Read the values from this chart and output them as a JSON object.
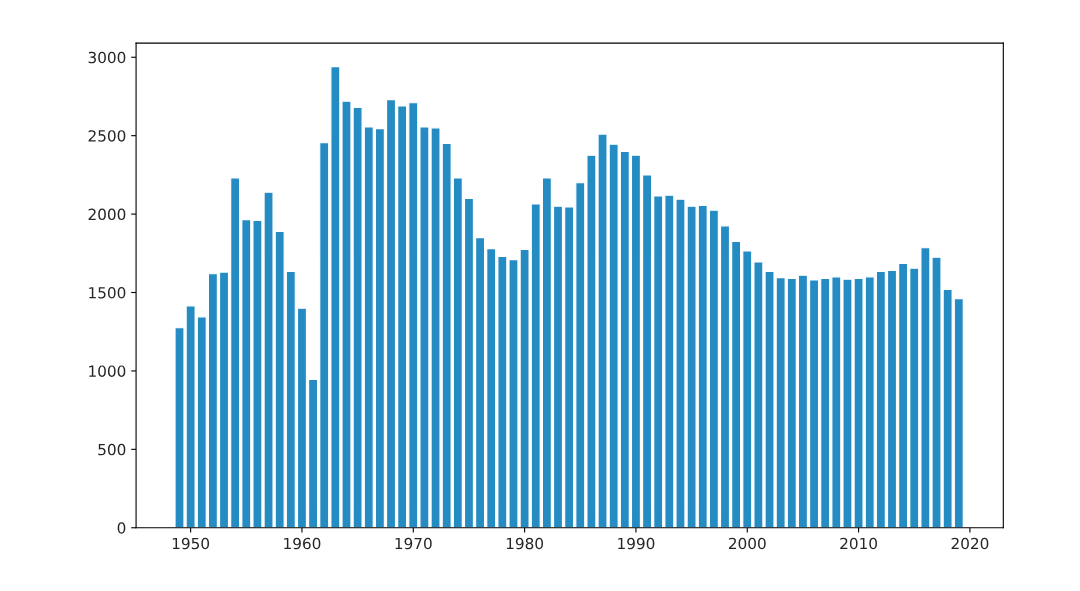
{
  "chart_data": {
    "type": "bar",
    "color": "#258bc3",
    "x": [
      1949,
      1950,
      1951,
      1952,
      1953,
      1954,
      1955,
      1956,
      1957,
      1958,
      1959,
      1960,
      1961,
      1962,
      1963,
      1964,
      1965,
      1966,
      1967,
      1968,
      1969,
      1970,
      1971,
      1972,
      1973,
      1974,
      1975,
      1976,
      1977,
      1978,
      1979,
      1980,
      1981,
      1982,
      1983,
      1984,
      1985,
      1986,
      1987,
      1988,
      1989,
      1990,
      1991,
      1992,
      1993,
      1994,
      1995,
      1996,
      1997,
      1998,
      1999,
      2000,
      2001,
      2002,
      2003,
      2004,
      2005,
      2006,
      2007,
      2008,
      2009,
      2010,
      2011,
      2012,
      2013,
      2014,
      2015,
      2016,
      2017,
      2018,
      2019
    ],
    "values": [
      1275,
      1415,
      1345,
      1620,
      1630,
      2230,
      1965,
      1960,
      2140,
      1890,
      1635,
      1400,
      945,
      2455,
      2940,
      2720,
      2680,
      2555,
      2545,
      2730,
      2690,
      2710,
      2555,
      2550,
      2450,
      2230,
      2100,
      1850,
      1780,
      1730,
      1710,
      1775,
      2065,
      2230,
      2050,
      2045,
      2200,
      2375,
      2510,
      2445,
      2400,
      2375,
      2250,
      2115,
      2120,
      2095,
      2050,
      2055,
      2025,
      1925,
      1825,
      1765,
      1695,
      1635,
      1595,
      1590,
      1610,
      1580,
      1590,
      1600,
      1585,
      1590,
      1600,
      1635,
      1640,
      1685,
      1655,
      1785,
      1725,
      1520,
      1460
    ],
    "xlim": [
      1945.1,
      2023
    ],
    "xticks": [
      1950,
      1960,
      1970,
      1980,
      1990,
      2000,
      2010,
      2020
    ],
    "ylim": [
      0,
      3090
    ],
    "yticks": [
      0,
      500,
      1000,
      1500,
      2000,
      2500,
      3000
    ],
    "grid": false
  }
}
